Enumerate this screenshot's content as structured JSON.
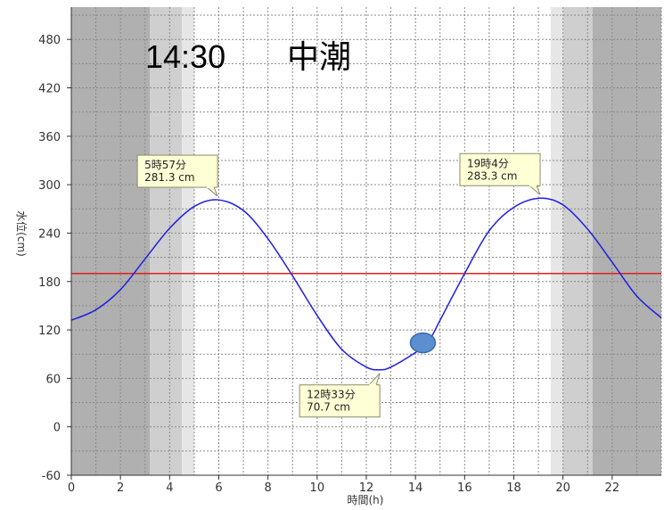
{
  "header": {
    "time": "14:30",
    "tide_name": "中潮"
  },
  "chart_data": {
    "type": "line",
    "xlabel": "時間(h)",
    "ylabel": "水位(cm)",
    "xlim": [
      0,
      24
    ],
    "ylim": [
      -60,
      520
    ],
    "x_ticks": [
      0,
      2,
      4,
      6,
      8,
      10,
      12,
      14,
      16,
      18,
      20,
      22
    ],
    "y_ticks": [
      -60,
      0,
      60,
      120,
      180,
      240,
      300,
      360,
      420,
      480
    ],
    "grid": true,
    "series": [
      {
        "x": [
          0,
          1,
          2,
          3,
          4,
          5,
          5.95,
          7,
          8,
          9,
          10,
          11,
          12,
          12.55,
          13,
          14,
          14.5,
          15,
          16,
          17,
          18,
          19.07,
          20,
          21,
          22,
          23,
          24
        ],
        "values": [
          132,
          145,
          170,
          208,
          246,
          273,
          281.3,
          268,
          233,
          187,
          138,
          96,
          74,
          70.7,
          74,
          92,
          104,
          132,
          190,
          243,
          272,
          283.3,
          275,
          245,
          204,
          162,
          135
        ],
        "color": "#1f1fe0"
      }
    ],
    "reference_line": {
      "value": 190,
      "color": "#e02020"
    },
    "current_marker": {
      "x": 14.3,
      "y": 104,
      "color": "#5b8fd1"
    },
    "callouts": [
      {
        "x": 5.95,
        "y": 281.3,
        "time_label": "5時57分",
        "value_label": "281.3 cm"
      },
      {
        "x": 12.55,
        "y": 70.7,
        "time_label": "12時33分",
        "value_label": "70.7 cm"
      },
      {
        "x": 19.07,
        "y": 283.3,
        "time_label": "19時4分",
        "value_label": "283.3 cm"
      }
    ],
    "night_shading": [
      {
        "from": 0,
        "to": 3.2,
        "shade": "#b0b0b0"
      },
      {
        "from": 3.2,
        "to": 4.5,
        "shade": "#cfcfcf"
      },
      {
        "from": 4.5,
        "to": 5.0,
        "shade": "#e6e6e6"
      },
      {
        "from": 19.5,
        "to": 20.0,
        "shade": "#e6e6e6"
      },
      {
        "from": 20.0,
        "to": 21.2,
        "shade": "#cfcfcf"
      },
      {
        "from": 21.2,
        "to": 24,
        "shade": "#b0b0b0"
      }
    ]
  }
}
